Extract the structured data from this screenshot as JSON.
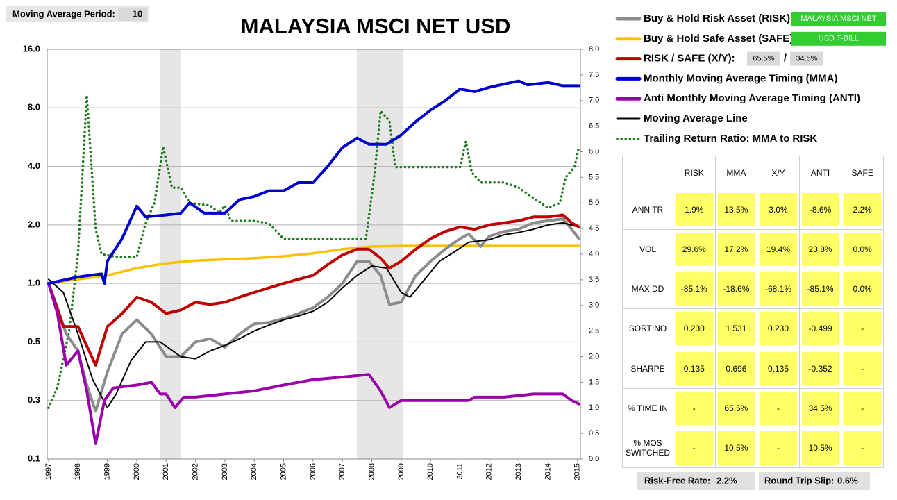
{
  "settings": {
    "label": "Moving Average Period:",
    "value": "10"
  },
  "legend_tags": {
    "risk": "MALAYSIA MSCI NET",
    "safe": "USD T-BILL",
    "xy": [
      "65.5%",
      "34.5%"
    ],
    "xy_separator": "/"
  },
  "footer": {
    "risk_free_label": "Risk-Free Rate:",
    "risk_free_value": "2.2%",
    "slip_label": "Round Trip Slip:",
    "slip_value": "0.6%"
  },
  "table": {
    "columns": [
      "RISK",
      "MMA",
      "X/Y",
      "ANTI",
      "SAFE"
    ],
    "rows": [
      {
        "label": "ANN TR",
        "cells": [
          "1.9%",
          "13.5%",
          "3.0%",
          "-8.6%",
          "2.2%"
        ]
      },
      {
        "label": "VOL",
        "cells": [
          "29.6%",
          "17.2%",
          "19.4%",
          "23.8%",
          "0.0%"
        ]
      },
      {
        "label": "MAX DD",
        "cells": [
          "-85.1%",
          "-18.6%",
          "-68.1%",
          "-85.1%",
          "0.0%"
        ]
      },
      {
        "label": "SORTINO",
        "cells": [
          "0.230",
          "1.531",
          "0.230",
          "-0.499",
          "-"
        ]
      },
      {
        "label": "SHARPE",
        "cells": [
          "0.135",
          "0.696",
          "0.135",
          "-0.352",
          "-"
        ]
      },
      {
        "label": "% TIME IN",
        "cells": [
          "-",
          "65.5%",
          "-",
          "34.5%",
          "-"
        ]
      },
      {
        "label": "% MOS SWITCHED",
        "cells": [
          "-",
          "10.5%",
          "-",
          "10.5%",
          "-"
        ]
      }
    ]
  },
  "chart_data": {
    "type": "line",
    "title": "MALAYSIA MSCI NET USD",
    "log_scale": true,
    "grid": true,
    "xlim": [
      1997,
      2015.1
    ],
    "xticks": [
      1997,
      1998,
      1999,
      2000,
      2001,
      2002,
      2003,
      2004,
      2005,
      2006,
      2007,
      2008,
      2009,
      2010,
      2011,
      2012,
      2013,
      2014,
      2015
    ],
    "ylim": [
      0.125,
      16
    ],
    "yticks": [
      {
        "value": 0.125,
        "label": "0.1"
      },
      {
        "value": 0.25,
        "label": "0.3"
      },
      0.5,
      {
        "value": 1,
        "label": "1.0"
      },
      {
        "value": 2,
        "label": "2.0"
      },
      {
        "value": 4,
        "label": "4.0"
      },
      {
        "value": 8,
        "label": "8.0"
      },
      {
        "value": 16,
        "label": "16.0"
      }
    ],
    "y2lim": [
      0,
      8
    ],
    "y2ticks": [
      {
        "value": 0,
        "label": "0.0"
      },
      0.5,
      {
        "value": 1,
        "label": "1.0"
      },
      1.5,
      {
        "value": 2,
        "label": "2.0"
      },
      2.5,
      {
        "value": 3,
        "label": "3.0"
      },
      3.5,
      {
        "value": 4,
        "label": "4.0"
      },
      4.5,
      {
        "value": 5,
        "label": "5.0"
      },
      5.5,
      {
        "value": 6,
        "label": "6.0"
      },
      6.5,
      {
        "value": 7,
        "label": "7.0"
      },
      7.5,
      {
        "value": 8,
        "label": "8.0"
      }
    ],
    "shaded_regions": [
      [
        2000.78,
        2001.51
      ],
      [
        2007.49,
        2009.05
      ]
    ],
    "series": [
      {
        "name": "Buy & Hold Risk Asset (RISK):",
        "color": "#8c8c8c",
        "x": [
          1997,
          1997.3,
          1997.6,
          1998,
          1998.3,
          1998.6,
          1999,
          1999.5,
          2000,
          2000.5,
          2001,
          2001.5,
          2002,
          2002.5,
          2003,
          2003.5,
          2004,
          2004.5,
          2005,
          2005.5,
          2006,
          2006.5,
          2007,
          2007.5,
          2007.9,
          2008.3,
          2008.6,
          2009,
          2009.5,
          2010,
          2010.5,
          2011,
          2011.3,
          2011.7,
          2012,
          2012.5,
          2013,
          2013.5,
          2014,
          2014.5,
          2014.8,
          2015.05
        ],
        "values": [
          1.0,
          0.75,
          0.55,
          0.45,
          0.3,
          0.22,
          0.35,
          0.55,
          0.65,
          0.55,
          0.42,
          0.42,
          0.5,
          0.52,
          0.47,
          0.55,
          0.62,
          0.63,
          0.66,
          0.7,
          0.75,
          0.85,
          1.0,
          1.3,
          1.3,
          1.1,
          0.78,
          0.8,
          1.1,
          1.3,
          1.5,
          1.7,
          1.8,
          1.55,
          1.75,
          1.85,
          1.9,
          2.05,
          2.1,
          2.15,
          1.9,
          1.7
        ]
      },
      {
        "name": "Buy & Hold Safe Asset (SAFE):",
        "color": "#ffc000",
        "x": [
          1997,
          1998,
          1999,
          2000,
          2001,
          2002,
          2003,
          2004,
          2005,
          2006,
          2007,
          2008,
          2009,
          2015.05
        ],
        "values": [
          1.0,
          1.05,
          1.1,
          1.2,
          1.27,
          1.31,
          1.33,
          1.35,
          1.38,
          1.43,
          1.5,
          1.55,
          1.56,
          1.56
        ]
      },
      {
        "name": "RISK / SAFE (X/Y):",
        "color": "#c00000",
        "x": [
          1997,
          1997.5,
          1998,
          1998.6,
          1999,
          1999.5,
          2000,
          2000.5,
          2001,
          2001.5,
          2002,
          2002.5,
          2003,
          2003.5,
          2004,
          2004.5,
          2005,
          2005.5,
          2006,
          2006.5,
          2007,
          2007.5,
          2007.9,
          2008.3,
          2008.6,
          2009,
          2009.5,
          2010,
          2010.5,
          2011,
          2011.5,
          2012,
          2012.5,
          2013,
          2013.5,
          2014,
          2014.5,
          2014.8,
          2015.05
        ],
        "values": [
          1.0,
          0.6,
          0.6,
          0.38,
          0.6,
          0.7,
          0.85,
          0.8,
          0.7,
          0.73,
          0.8,
          0.78,
          0.8,
          0.85,
          0.9,
          0.95,
          1.0,
          1.05,
          1.1,
          1.25,
          1.4,
          1.5,
          1.5,
          1.35,
          1.2,
          1.3,
          1.5,
          1.7,
          1.85,
          1.95,
          1.9,
          2.0,
          2.05,
          2.1,
          2.2,
          2.2,
          2.25,
          2.05,
          1.95
        ]
      },
      {
        "name": "Monthly Moving Average Timing (MMA)",
        "color": "#0000cc",
        "x": [
          1997,
          1997.5,
          1998,
          1998.8,
          1998.9,
          1999,
          1999.5,
          2000,
          2000.3,
          2001,
          2001.5,
          2001.8,
          2002.3,
          2003,
          2003.5,
          2004,
          2004.5,
          2005,
          2005.5,
          2006,
          2006.5,
          2007,
          2007.5,
          2007.9,
          2008.5,
          2009,
          2009.5,
          2010,
          2010.5,
          2011,
          2011.5,
          2012,
          2012.5,
          2013,
          2013.3,
          2014,
          2014.5,
          2015.05
        ],
        "values": [
          1.0,
          1.04,
          1.08,
          1.12,
          1.0,
          1.3,
          1.7,
          2.5,
          2.2,
          2.25,
          2.3,
          2.6,
          2.3,
          2.3,
          2.7,
          2.8,
          3.0,
          3.0,
          3.3,
          3.3,
          4.0,
          5.0,
          5.6,
          5.2,
          5.2,
          5.8,
          6.8,
          7.8,
          8.7,
          10.0,
          9.7,
          10.2,
          10.6,
          11.0,
          10.5,
          10.8,
          10.4,
          10.4
        ]
      },
      {
        "name": "Anti Monthly Moving Average Timing (ANTI)",
        "color": "#9900aa",
        "x": [
          1997,
          1997.3,
          1997.6,
          1998,
          1998.3,
          1998.6,
          1998.9,
          1999.2,
          2000,
          2000.5,
          2000.8,
          2001,
          2001.3,
          2001.6,
          2002,
          2003,
          2004,
          2005,
          2006,
          2007,
          2007.9,
          2008.3,
          2008.6,
          2009,
          2010,
          2011.3,
          2011.5,
          2012.5,
          2013.5,
          2014.5,
          2014.8,
          2015.05
        ],
        "values": [
          1.0,
          0.7,
          0.38,
          0.45,
          0.28,
          0.15,
          0.25,
          0.29,
          0.3,
          0.31,
          0.27,
          0.27,
          0.23,
          0.26,
          0.26,
          0.27,
          0.28,
          0.3,
          0.32,
          0.33,
          0.34,
          0.28,
          0.23,
          0.25,
          0.25,
          0.25,
          0.26,
          0.26,
          0.27,
          0.27,
          0.25,
          0.24
        ]
      },
      {
        "name": "Moving Average Line",
        "color": "#000000",
        "x": [
          1997,
          1997.5,
          1998,
          1998.5,
          1999,
          1999.3,
          1999.8,
          2000.3,
          2000.8,
          2001.5,
          2002,
          2002.5,
          2003,
          2003.5,
          2004,
          2004.5,
          2005,
          2005.5,
          2006,
          2006.5,
          2007,
          2007.5,
          2008,
          2008.5,
          2009,
          2009.3,
          2009.8,
          2010.3,
          2010.8,
          2011.3,
          2012,
          2012.5,
          2013,
          2013.5,
          2014,
          2014.5,
          2015.05
        ],
        "values": [
          1.05,
          0.9,
          0.55,
          0.32,
          0.23,
          0.27,
          0.4,
          0.5,
          0.5,
          0.42,
          0.41,
          0.45,
          0.48,
          0.52,
          0.57,
          0.61,
          0.65,
          0.68,
          0.72,
          0.8,
          0.95,
          1.1,
          1.23,
          1.2,
          0.9,
          0.85,
          1.05,
          1.3,
          1.45,
          1.63,
          1.68,
          1.78,
          1.83,
          1.9,
          2.0,
          2.05,
          1.95
        ]
      },
      {
        "name": "Trailing Return Ratio: MMA to RISK",
        "color": "#1e7b1e",
        "line_style": "dotted",
        "axis": "y2",
        "x": [
          1997,
          1997.3,
          1997.7,
          1998,
          1998.3,
          1998.6,
          1998.8,
          1999.3,
          2000,
          2000.3,
          2000.6,
          2000.9,
          2001.2,
          2001.5,
          2001.8,
          2002.5,
          2002.8,
          2003,
          2003.2,
          2004,
          2004.5,
          2005,
          2006,
          2007,
          2007.8,
          2008.1,
          2008.3,
          2008.6,
          2008.8,
          2009.5,
          2011,
          2011.2,
          2011.4,
          2011.7,
          2012.5,
          2013,
          2013.5,
          2014,
          2014.4,
          2014.6,
          2014.9,
          2015.05
        ],
        "values": [
          1.0,
          1.4,
          2.5,
          4.0,
          7.1,
          4.5,
          4.0,
          3.95,
          3.95,
          4.6,
          5.0,
          6.1,
          5.3,
          5.3,
          5.0,
          4.95,
          4.8,
          4.95,
          4.65,
          4.65,
          4.6,
          4.3,
          4.3,
          4.3,
          4.3,
          5.6,
          6.8,
          6.6,
          5.7,
          5.7,
          5.7,
          6.2,
          5.6,
          5.4,
          5.4,
          5.3,
          5.1,
          4.9,
          5.0,
          5.5,
          5.7,
          6.1
        ]
      }
    ]
  }
}
